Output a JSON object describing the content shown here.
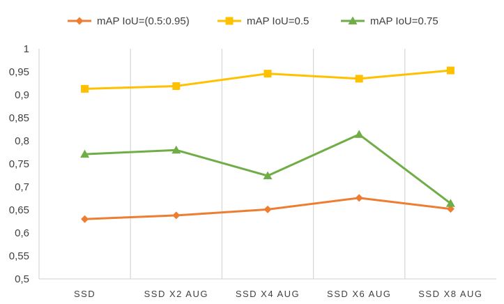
{
  "chart_data": {
    "type": "line",
    "categories": [
      "SSD",
      "SSD X2 AUG",
      "SSD X4 AUG",
      "SSD X6 AUG",
      "SSD X8 AUG"
    ],
    "ylim": [
      0.5,
      1
    ],
    "yticks": [
      "0,5",
      "0,55",
      "0,6",
      "0,65",
      "0,7",
      "0,75",
      "0,8",
      "0,85",
      "0,9",
      "0,95",
      "1"
    ],
    "grid": "vertical",
    "legend_position": "top",
    "series": [
      {
        "name": "mAP IoU=(0.5:0.95)",
        "values": [
          0.63,
          0.638,
          0.651,
          0.676,
          0.652
        ],
        "color": "#ED7D31",
        "marker": "diamond"
      },
      {
        "name": "mAP IoU=0.5",
        "values": [
          0.913,
          0.919,
          0.946,
          0.935,
          0.953
        ],
        "color": "#FFC000",
        "marker": "square"
      },
      {
        "name": "mAP IoU=0.75",
        "values": [
          0.771,
          0.78,
          0.724,
          0.814,
          0.664
        ],
        "color": "#70AD47",
        "marker": "triangle"
      }
    ]
  }
}
